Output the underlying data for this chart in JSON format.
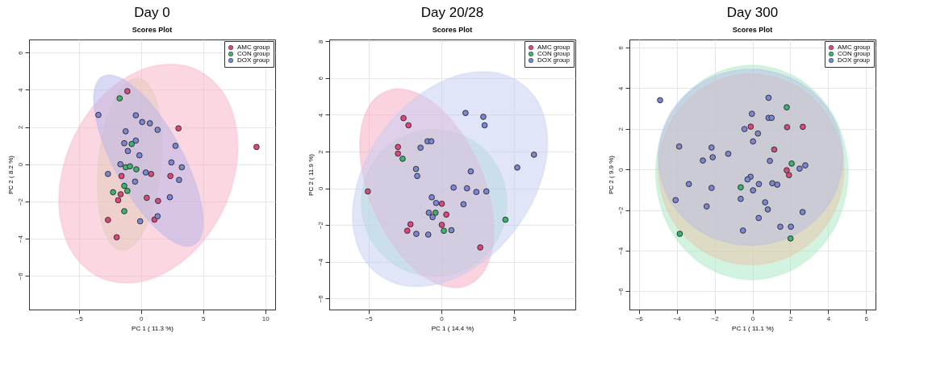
{
  "chart_data": [
    {
      "type": "scatter",
      "title": "Day 0",
      "subtitle": "Scores Plot",
      "xlabel": "PC 1 ( 11.3 %)",
      "ylabel": "PC 2 ( 8.2 %)",
      "xlim": [
        -9,
        10.8
      ],
      "ylim": [
        -7.8,
        6.7
      ],
      "xticks": [
        -5,
        0,
        5,
        10
      ],
      "yticks": [
        -6,
        -4,
        -2,
        0,
        2,
        4,
        6
      ],
      "grid": true,
      "legend": "top right",
      "marker": "circle",
      "series": [
        {
          "type": "area",
          "marker": "none",
          "color": "#c9e6b0",
          "x": [
            1.7,
            1.35,
            0.4,
            -0.9,
            -2.2,
            -3.15,
            -3.5,
            -3.15,
            -2.2,
            -0.9,
            0.4,
            1.35
          ],
          "values": [
            1.04,
            3.15,
            4.42,
            4.5,
            3.38,
            1.35,
            -1.04,
            -3.15,
            -4.42,
            -4.5,
            -3.38,
            -1.35
          ]
        },
        {
          "type": "area",
          "marker": "none",
          "color": "#f7b0c4",
          "x": [
            7.8,
            6.84,
            4.2,
            0.6,
            -3.0,
            -5.64,
            -6.6,
            -5.64,
            -3.0,
            0.6,
            4.2,
            6.84
          ],
          "values": [
            0.94,
            3.6,
            5.16,
            5.2,
            3.72,
            1.1,
            -1.94,
            -4.6,
            -6.16,
            -6.2,
            -4.72,
            -2.1
          ]
        },
        {
          "type": "area",
          "marker": "none",
          "color": "#b6b4ec",
          "x": [
            5.0,
            4.41,
            2.8,
            0.6,
            -1.6,
            -3.21,
            -3.8,
            -3.21,
            -1.6,
            0.6,
            2.8,
            4.41
          ],
          "values": [
            -3.1,
            -1.06,
            1.32,
            3.4,
            4.62,
            4.66,
            3.5,
            1.46,
            -0.92,
            -3.0,
            -4.22,
            -4.26
          ]
        },
        {
          "name": "AMC group",
          "color": "#e0457b",
          "x": [
            -1.09,
            3.02,
            9.3,
            -1.56,
            0.82,
            2.37,
            -1.63,
            -1.83,
            0.47,
            1.38,
            1.09,
            -2.65,
            -1.95
          ],
          "values": [
            3.92,
            1.93,
            0.93,
            -0.63,
            -0.52,
            -0.63,
            -1.61,
            -1.93,
            -1.8,
            -1.97,
            -2.97,
            -2.99,
            -3.92
          ]
        },
        {
          "name": "CON group",
          "color": "#3cb371",
          "x": [
            -1.71,
            -0.74,
            -1.23,
            -0.88,
            -0.37,
            -1.34,
            -1.09,
            -2.24,
            -1.34
          ],
          "values": [
            3.54,
            1.09,
            -0.16,
            -0.11,
            -0.27,
            -1.16,
            -1.43,
            -1.5,
            -2.52
          ]
        },
        {
          "name": "DOX group",
          "color": "#7b86d6",
          "x": [
            -3.42,
            -0.41,
            0.1,
            0.72,
            1.34,
            -1.23,
            -1.34,
            -0.41,
            -1.05,
            -0.12,
            2.78,
            2.45,
            3.29,
            -1.65,
            -2.65,
            0.39,
            3.07,
            -0.47,
            2.33,
            1.34,
            -0.06
          ],
          "values": [
            2.65,
            2.63,
            2.27,
            2.2,
            1.85,
            1.77,
            1.13,
            1.27,
            0.71,
            0.48,
            0.99,
            0.1,
            -0.16,
            0,
            -0.52,
            -0.44,
            -0.84,
            -0.93,
            -1.77,
            -2.79,
            -3.06
          ]
        }
      ]
    },
    {
      "type": "scatter",
      "title": "Day 20/28",
      "subtitle": "Scores Plot",
      "xlabel": "PC 1 ( 14.4 %)",
      "ylabel": "PC 2 ( 11.9 %)",
      "xlim": [
        -7.7,
        9.2
      ],
      "ylim": [
        -6.6,
        8.1
      ],
      "xticks": [
        -5,
        0,
        5
      ],
      "yticks": [
        -6,
        -4,
        -2,
        0,
        2,
        4,
        6,
        8
      ],
      "grid": true,
      "legend": "top right",
      "marker": "circle",
      "series": [
        {
          "type": "area",
          "marker": "none",
          "color": "#a8e6c8",
          "x": [
            4.5,
            3.83,
            2.0,
            -0.5,
            -3.0,
            -4.83,
            -5.5,
            -4.83,
            -3.0,
            -0.5,
            2.0,
            3.83
          ],
          "values": [
            -0.8,
            1.2,
            2.66,
            3.2,
            2.66,
            1.2,
            -0.8,
            -2.8,
            -4.26,
            -4.8,
            -4.26,
            -2.8
          ]
        },
        {
          "type": "area",
          "marker": "none",
          "color": "#f5a8c0",
          "x": [
            3.6,
            2.98,
            1.3,
            -1.0,
            -3.3,
            -4.98,
            -5.6,
            -4.98,
            -3.3,
            -1.0,
            1.3,
            2.98
          ],
          "values": [
            -2.3,
            0.46,
            3.09,
            4.9,
            5.39,
            4.44,
            2.3,
            -0.46,
            -3.09,
            -4.9,
            -5.39,
            -4.44
          ]
        },
        {
          "type": "area",
          "marker": "none",
          "color": "#c4ccf2",
          "x": [
            7.3,
            6.4,
            3.95,
            0.6,
            -2.75,
            -5.2,
            -6.1,
            -5.2,
            -2.75,
            0.6,
            3.95,
            6.4
          ],
          "values": [
            2.51,
            4.99,
            6.26,
            6.0,
            4.26,
            1.51,
            -1.51,
            -3.99,
            -5.26,
            -5.0,
            -3.26,
            -0.51
          ]
        },
        {
          "name": "AMC group",
          "color": "#e0457b",
          "x": [
            -2.6,
            -2.26,
            -2.98,
            -2.98,
            -5.05,
            0.03,
            0.34,
            -2.12,
            0.03,
            -2.34,
            2.67
          ],
          "values": [
            3.82,
            3.43,
            2.25,
            1.89,
            -0.17,
            -0.84,
            -1.43,
            -1.96,
            -1.99,
            -2.31,
            -3.22
          ]
        },
        {
          "name": "CON group",
          "color": "#3cb371",
          "x": [
            -2.66,
            -0.4,
            4.4,
            0.17
          ],
          "values": [
            1.61,
            -1.33,
            -1.71,
            -2.31
          ]
        },
        {
          "name": "DOX group",
          "color": "#7b86d6",
          "x": [
            1.66,
            2.88,
            2.97,
            -0.95,
            -0.69,
            -1.43,
            6.36,
            5.21,
            -1.74,
            -1.66,
            2.02,
            0.84,
            1.76,
            2.4,
            3.09,
            -0.66,
            -0.36,
            1.52,
            -0.86,
            -0.6,
            -1.72,
            -0.9,
            0.69
          ],
          "values": [
            4.1,
            3.89,
            3.43,
            2.56,
            2.56,
            2.21,
            1.83,
            1.13,
            1.05,
            0.67,
            0.92,
            0.04,
            0,
            -0.2,
            -0.17,
            -0.49,
            -0.8,
            -0.87,
            -1.33,
            -1.57,
            -2.48,
            -2.52,
            -2.28
          ]
        }
      ]
    },
    {
      "type": "scatter",
      "title": "Day 300",
      "subtitle": "Scores Plot",
      "xlabel": "PC 1 ( 11.1 %)",
      "ylabel": "PC 2 ( 9.9 %)",
      "xlim": [
        -6.5,
        6.5
      ],
      "ylim": [
        -6.9,
        6.4
      ],
      "xticks": [
        -6,
        -4,
        -2,
        0,
        2,
        4,
        6
      ],
      "yticks": [
        -6,
        -4,
        -2,
        0,
        2,
        4,
        6
      ],
      "grid": true,
      "legend": "top right",
      "marker": "circle",
      "series": [
        {
          "type": "area",
          "marker": "none",
          "color": "#a8e8c4",
          "x": [
            5.05,
            4.37,
            2.51,
            -0.03,
            -2.57,
            -4.43,
            -5.11,
            -4.43,
            -2.57,
            -0.03,
            2.51,
            4.37
          ],
          "values": [
            -0.15,
            2.49,
            4.42,
            5.13,
            4.42,
            2.49,
            -0.15,
            -2.79,
            -4.72,
            -5.43,
            -4.72,
            -2.79
          ]
        },
        {
          "type": "area",
          "marker": "none",
          "color": "#e8c4a8",
          "x": [
            4.83,
            4.17,
            2.38,
            -0.07,
            -2.52,
            -4.31,
            -4.97,
            -4.31,
            -2.52,
            -0.07,
            2.38,
            4.17
          ],
          "values": [
            0,
            2.35,
            4.07,
            4.7,
            4.07,
            2.35,
            0,
            -2.35,
            -4.07,
            -4.7,
            -4.07,
            -2.35
          ]
        },
        {
          "type": "area",
          "marker": "none",
          "color": "#b8bce6",
          "x": [
            4.78,
            4.13,
            2.34,
            -0.1,
            -2.54,
            -4.33,
            -4.98,
            -4.33,
            -2.54,
            -0.1,
            2.34,
            4.13
          ],
          "values": [
            0.6,
            2.77,
            4.36,
            4.94,
            4.36,
            2.77,
            0.6,
            -1.57,
            -3.16,
            -3.74,
            -3.16,
            -1.57
          ]
        },
        {
          "name": "AMC group",
          "color": "#e0457b",
          "x": [
            -0.09,
            1.83,
            2.66,
            1.15,
            1.81,
            1.93
          ],
          "values": [
            2.11,
            2.08,
            2.1,
            0.98,
            -0.04,
            -0.28
          ]
        },
        {
          "name": "CON group",
          "color": "#3cb371",
          "x": [
            1.81,
            2.07,
            -0.62,
            -3.84,
            2.01
          ],
          "values": [
            3.06,
            0.29,
            -0.88,
            -3.17,
            -3.4
          ]
        },
        {
          "name": "DOX group",
          "color": "#7b86d6",
          "x": [
            -4.88,
            0.85,
            -0.03,
            0.85,
            1.01,
            -0.42,
            0.29,
            0.03,
            -3.87,
            -2.16,
            -1.28,
            -2.1,
            -2.62,
            0.92,
            2.79,
            2.49,
            -0.1,
            -0.26,
            -3.36,
            1.05,
            1.31,
            0.34,
            -2.16,
            0.03,
            -4.06,
            -0.62,
            -2.42,
            0.67,
            0.81,
            2.65,
            0.33,
            1.47,
            2.03,
            -0.5
          ],
          "values": [
            3.41,
            3.53,
            2.74,
            2.54,
            2.54,
            1.99,
            1.77,
            1.38,
            1.13,
            1.08,
            0.77,
            0.6,
            0.44,
            0.42,
            0.2,
            0.04,
            -0.36,
            -0.49,
            -0.72,
            -0.68,
            -0.75,
            -0.72,
            -0.91,
            -1.03,
            -1.51,
            -1.45,
            -1.82,
            -1.62,
            -1.97,
            -2.1,
            -2.39,
            -2.82,
            -2.82,
            -3.01
          ]
        }
      ]
    }
  ]
}
